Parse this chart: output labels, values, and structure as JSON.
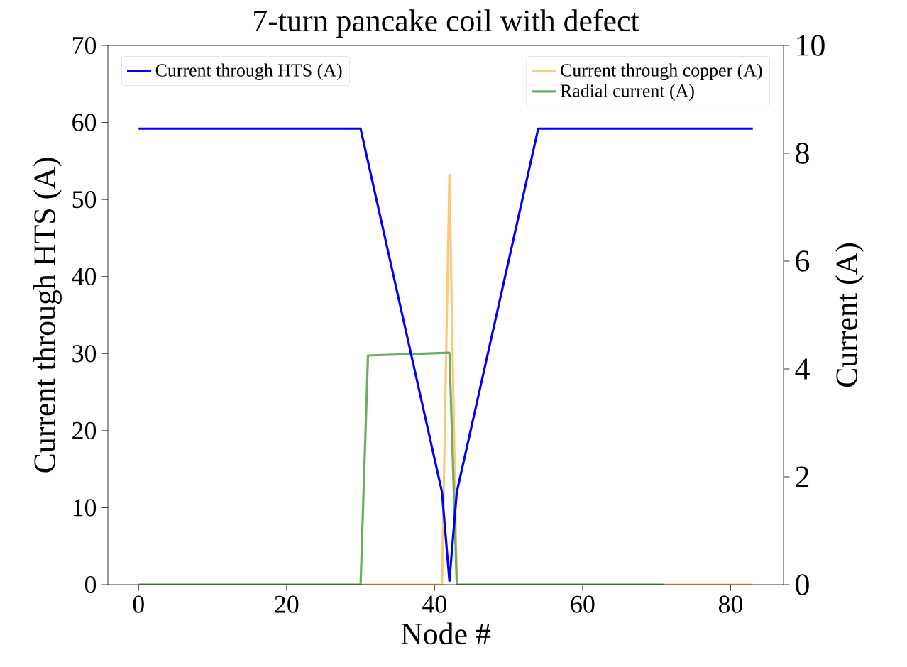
{
  "chart_data": {
    "type": "line",
    "title": "7-turn pancake coil with defect",
    "xlabel": "Node #",
    "ylabel": "Current through HTS (A)",
    "y2label": "Current (A)",
    "xlim": [
      -4.15,
      87.15
    ],
    "xticks": [
      0,
      20,
      40,
      60,
      80
    ],
    "ylim": [
      0,
      70
    ],
    "yticks": [
      0,
      10,
      20,
      30,
      40,
      50,
      60,
      70
    ],
    "y2lim": [
      0,
      10
    ],
    "y2ticks": [
      0,
      2,
      4,
      6,
      8,
      10
    ],
    "grid": false,
    "legend": "top",
    "marker": "none",
    "line_style": "solid",
    "series": [
      {
        "name": "Current through HTS (A)",
        "color": "#0000ff",
        "axis": "y",
        "x": [
          0,
          30,
          41,
          42,
          43,
          54,
          83
        ],
        "values": [
          59.2,
          59.2,
          12,
          0.5,
          12,
          59.2,
          59.2
        ]
      },
      {
        "name": "Current through copper (A)",
        "color": "#ffc77a",
        "axis": "y2",
        "x": [
          0,
          41,
          42,
          43,
          83
        ],
        "values": [
          0,
          0,
          7.6,
          0,
          0
        ]
      },
      {
        "name": "Radial current (A)",
        "color": "#6aae62",
        "axis": "y2",
        "x": [
          0,
          30,
          31,
          42,
          43,
          71
        ],
        "values": [
          0,
          0,
          4.25,
          4.3,
          0,
          0
        ]
      }
    ]
  }
}
